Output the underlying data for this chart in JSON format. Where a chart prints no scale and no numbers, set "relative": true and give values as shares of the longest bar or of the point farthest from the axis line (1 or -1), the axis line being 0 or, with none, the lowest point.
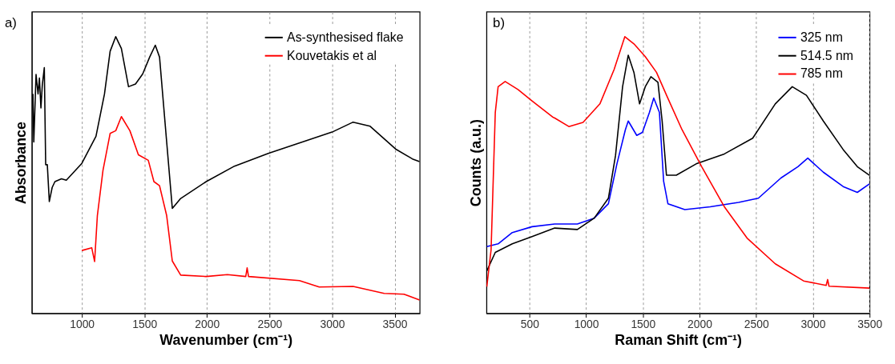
{
  "chart_data": [
    {
      "type": "line",
      "relative": true,
      "xlabel": "Wavenumber (cm⁻¹)",
      "ylabel": "Absorbance",
      "xlim": [
        600,
        3700
      ],
      "xticks": [
        1000,
        1500,
        2000,
        2500,
        3000,
        3500
      ],
      "grid": "x",
      "legend": "top right",
      "annotations": [
        "a)"
      ],
      "series": [
        {
          "name": "As-synthesised flake",
          "color": "#000000",
          "x": [
            609,
            616,
            634,
            650,
            661,
            673,
            684,
            700,
            711,
            724,
            740,
            763,
            785,
            837,
            876,
            1000,
            1113,
            1181,
            1226,
            1271,
            1316,
            1373,
            1429,
            1486,
            1542,
            1587,
            1621,
            1678,
            1723,
            1790,
            1994,
            2220,
            2490,
            2762,
            3000,
            3168,
            3304,
            3507,
            3642,
            3699
          ],
          "values": [
            0.793,
            0.619,
            0.863,
            0.793,
            0.85,
            0.742,
            0.825,
            0.888,
            0.537,
            0.537,
            0.404,
            0.455,
            0.476,
            0.486,
            0.481,
            0.542,
            0.64,
            0.793,
            0.947,
            1.0,
            0.957,
            0.819,
            0.829,
            0.865,
            0.926,
            0.969,
            0.926,
            0.619,
            0.379,
            0.415,
            0.476,
            0.532,
            0.578,
            0.619,
            0.655,
            0.691,
            0.676,
            0.594,
            0.558,
            0.548
          ]
        },
        {
          "name": "Kouvetakis et al",
          "color": "#ff0000",
          "x": [
            1000,
            1079,
            1102,
            1124,
            1169,
            1226,
            1271,
            1316,
            1384,
            1452,
            1531,
            1576,
            1621,
            1678,
            1723,
            1790,
            1994,
            2163,
            2310,
            2321,
            2332,
            2739,
            2897,
            3168,
            3416,
            3574,
            3699
          ],
          "values": [
            0.227,
            0.237,
            0.187,
            0.353,
            0.517,
            0.65,
            0.66,
            0.711,
            0.66,
            0.573,
            0.553,
            0.476,
            0.461,
            0.353,
            0.189,
            0.138,
            0.133,
            0.14,
            0.133,
            0.164,
            0.133,
            0.118,
            0.095,
            0.097,
            0.072,
            0.069,
            0.048
          ]
        }
      ]
    },
    {
      "type": "line",
      "relative": true,
      "xlabel": "Raman Shift (cm⁻¹)",
      "ylabel": "Counts (a.u.)",
      "xlim": [
        120,
        3500
      ],
      "xticks": [
        500,
        1000,
        1500,
        2000,
        2500,
        3000,
        3500
      ],
      "grid": "x",
      "legend": "top right",
      "annotations": [
        "b)"
      ],
      "series": [
        {
          "name": "325 nm",
          "color": "#0000ff",
          "x": [
            123,
            223,
            348,
            522,
            722,
            922,
            1071,
            1196,
            1271,
            1346,
            1371,
            1446,
            1496,
            1558,
            1596,
            1646,
            1683,
            1721,
            1870,
            2094,
            2344,
            2519,
            2718,
            2868,
            2955,
            3092,
            3267,
            3392,
            3499
          ],
          "values": [
            0.241,
            0.251,
            0.292,
            0.313,
            0.323,
            0.323,
            0.344,
            0.396,
            0.54,
            0.664,
            0.695,
            0.643,
            0.654,
            0.726,
            0.778,
            0.726,
            0.478,
            0.396,
            0.375,
            0.385,
            0.401,
            0.416,
            0.489,
            0.53,
            0.561,
            0.51,
            0.458,
            0.437,
            0.468
          ]
        },
        {
          "name": "514.5 nm",
          "color": "#000000",
          "x": [
            123,
            198,
            348,
            522,
            722,
            922,
            1071,
            1196,
            1259,
            1321,
            1371,
            1421,
            1471,
            1521,
            1571,
            1633,
            1670,
            1708,
            1795,
            1970,
            2219,
            2469,
            2668,
            2818,
            2943,
            3092,
            3267,
            3392,
            3499
          ],
          "values": [
            0.153,
            0.22,
            0.251,
            0.277,
            0.308,
            0.303,
            0.344,
            0.416,
            0.571,
            0.819,
            0.933,
            0.871,
            0.757,
            0.819,
            0.855,
            0.835,
            0.695,
            0.499,
            0.499,
            0.54,
            0.576,
            0.633,
            0.757,
            0.819,
            0.788,
            0.695,
            0.592,
            0.53,
            0.499
          ]
        },
        {
          "name": "785 nm",
          "color": "#ff0000",
          "x": [
            123,
            161,
            198,
            223,
            285,
            398,
            522,
            710,
            722,
            847,
            972,
            1121,
            1246,
            1341,
            1421,
            1521,
            1620,
            1720,
            1845,
            2019,
            2219,
            2419,
            2668,
            2918,
            3117,
            3130,
            3142,
            3499
          ],
          "values": [
            0.096,
            0.23,
            0.726,
            0.819,
            0.838,
            0.809,
            0.768,
            0.708,
            0.706,
            0.675,
            0.69,
            0.757,
            0.881,
            1.0,
            0.974,
            0.928,
            0.871,
            0.778,
            0.664,
            0.53,
            0.385,
            0.272,
            0.179,
            0.117,
            0.101,
            0.122,
            0.098,
            0.091
          ]
        }
      ]
    }
  ]
}
